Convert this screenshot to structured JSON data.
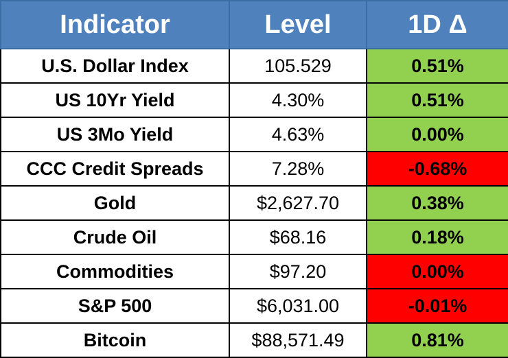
{
  "table": {
    "header": [
      "Indicator",
      "Level",
      "1D Δ"
    ],
    "header_color": "#4f81bd",
    "rows": [
      {
        "indicator": "U.S. Dollar Index",
        "level": "105.529",
        "change": "0.51%",
        "color": "#92d050"
      },
      {
        "indicator": "US 10Yr Yield",
        "level": "4.30%",
        "change": "0.51%",
        "color": "#92d050"
      },
      {
        "indicator": "US 3Mo Yield",
        "level": "4.63%",
        "change": "0.00%",
        "color": "#92d050"
      },
      {
        "indicator": "CCC Credit Spreads",
        "level": "7.28%",
        "change": "-0.68%",
        "color": "#ff0000"
      },
      {
        "indicator": "Gold",
        "level": "$2,627.70",
        "change": "0.38%",
        "color": "#92d050"
      },
      {
        "indicator": "Crude Oil",
        "level": "$68.16",
        "change": "0.18%",
        "color": "#92d050"
      },
      {
        "indicator": "Commodities",
        "level": "$97.20",
        "change": "0.00%",
        "color": "#ff0000"
      },
      {
        "indicator": "S&P 500",
        "level": "$6,031.00",
        "change": "-0.01%",
        "color": "#ff0000"
      },
      {
        "indicator": "Bitcoin",
        "level": "$88,571.49",
        "change": "0.81%",
        "color": "#92d050"
      }
    ]
  }
}
